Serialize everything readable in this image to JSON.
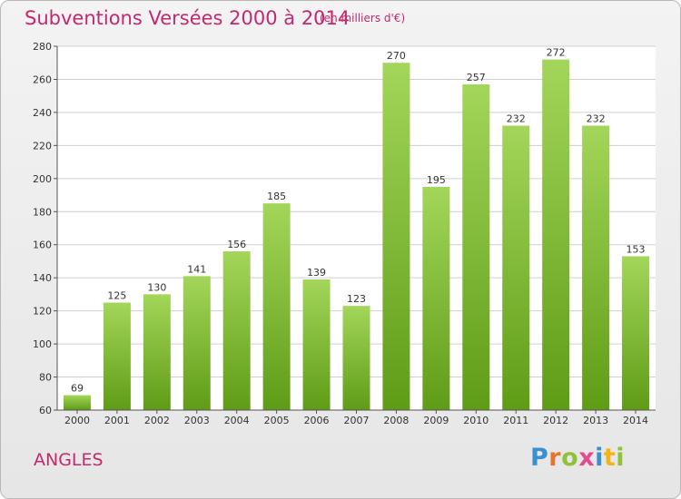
{
  "header": {
    "title": "Subventions Versées 2000 à 2014",
    "subtitle": "(en milliers d'€)"
  },
  "footer": {
    "commune": "ANGLES",
    "logo_text": "Proxiti"
  },
  "colors": {
    "accent": "#c4286e",
    "bar_top": "#a3d65a",
    "bar_bottom": "#5f9c16",
    "grid": "#cfcfcf",
    "axis_text": "#333333"
  },
  "chart_data": {
    "type": "bar",
    "title": "Subventions Versées 2000 à 2014",
    "subtitle": "(en milliers d'€)",
    "categories": [
      "2000",
      "2001",
      "2002",
      "2003",
      "2004",
      "2005",
      "2006",
      "2007",
      "2008",
      "2009",
      "2010",
      "2011",
      "2012",
      "2013",
      "2014"
    ],
    "values": [
      69,
      125,
      130,
      141,
      156,
      185,
      139,
      123,
      270,
      195,
      257,
      232,
      272,
      232,
      153
    ],
    "ylim": [
      60,
      280
    ],
    "yticks": [
      60,
      80,
      100,
      120,
      140,
      160,
      180,
      200,
      220,
      240,
      260,
      280
    ],
    "grid": true,
    "data_labels": true
  }
}
